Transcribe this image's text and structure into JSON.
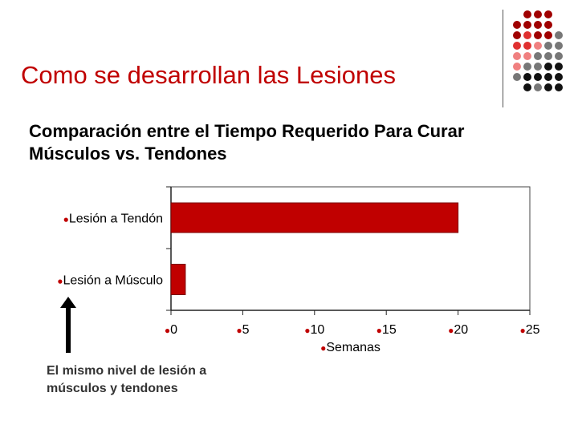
{
  "slide": {
    "title": "Como se desarrollan las Lesiones",
    "subtitle_line1": "Comparación entre el Tiempo Requerido Para Curar",
    "subtitle_line2": "Músculos vs. Tendones",
    "note_line1": "El mismo nivel de lesión a",
    "note_line2": "músculos y tendones"
  },
  "colors": {
    "title": "#c00000",
    "bar": "#c00000",
    "bullet": "#c00000",
    "decor_dark_red": "#a00000",
    "decor_red": "#e03030",
    "decor_light_red": "#f08080",
    "decor_gray": "#777777",
    "decor_dark": "#111111"
  },
  "chart_data": {
    "type": "bar",
    "orientation": "horizontal",
    "categories": [
      "Lesión a Tendón",
      "Lesión a Músculo"
    ],
    "values": [
      20,
      1
    ],
    "xlabel": "Semanas",
    "ylabel": "",
    "xlim": [
      0,
      25
    ],
    "xticks": [
      0,
      5,
      10,
      15,
      20,
      25
    ],
    "grid": false,
    "legend": "none",
    "label_bullet": "●"
  }
}
